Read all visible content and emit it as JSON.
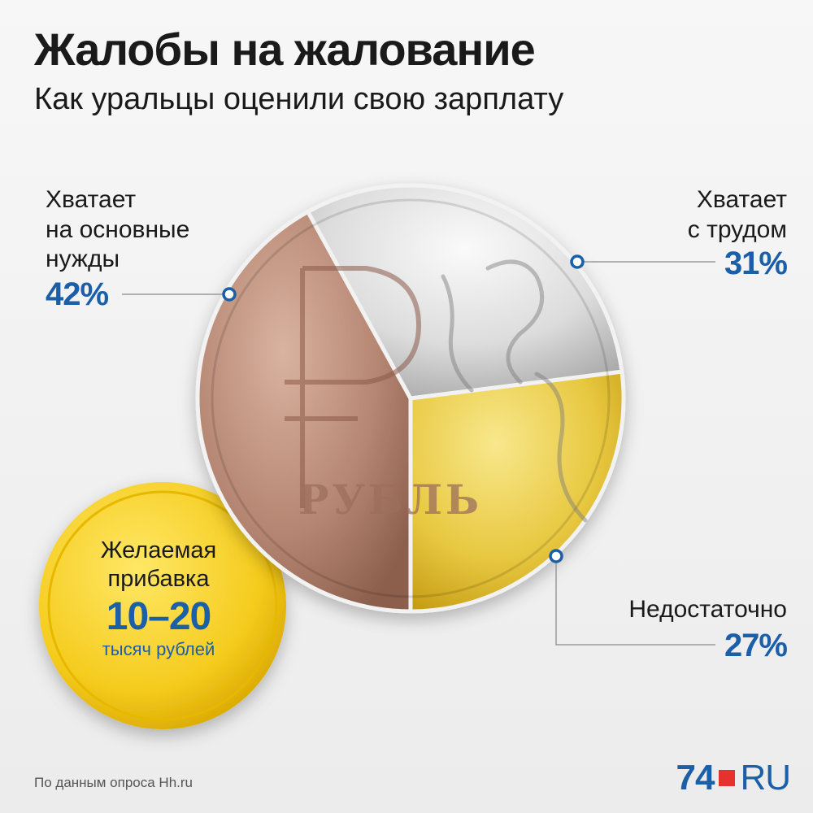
{
  "header": {
    "title": "Жалобы на жалование",
    "subtitle": "Как уральцы оценили свою зарплату"
  },
  "chart_data": {
    "type": "pie",
    "title": "Жалобы на жалование",
    "subtitle": "Как уральцы оценили свою зарплату",
    "slices": [
      {
        "label": "Хватает на основные нужды",
        "value": 42,
        "display": "42%",
        "color": "#b58672"
      },
      {
        "label": "Хватает с трудом",
        "value": 31,
        "display": "31%",
        "color": "#dcdcdc"
      },
      {
        "label": "Недостаточно",
        "value": 27,
        "display": "27%",
        "color": "#e8c840"
      }
    ]
  },
  "labels": {
    "left": [
      "Хватает",
      "на основные",
      "нужды"
    ],
    "top_right": [
      "Хватает",
      "с трудом"
    ],
    "bottom_right": [
      "Недостаточно"
    ]
  },
  "coin_text": "РУБЛЬ",
  "badge": {
    "line1": "Желаемая",
    "line2": "прибавка",
    "value": "10–20",
    "unit": "тысяч рублей"
  },
  "footer": {
    "source": "По данным опроса Hh.ru",
    "logo_num": "74",
    "logo_ru": "RU"
  },
  "colors": {
    "accent": "#1a5fa8",
    "logo_red": "#e5322d",
    "badge_gold": "#f5cc1e"
  }
}
